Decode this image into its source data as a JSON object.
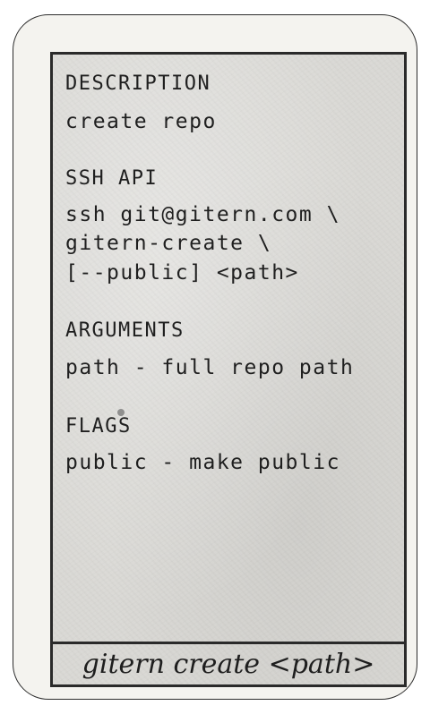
{
  "card": {
    "sections": {
      "description": {
        "heading": "DESCRIPTION",
        "text": "create repo"
      },
      "ssh_api": {
        "heading": "SSH API",
        "lines": [
          "ssh git@gitern.com \\",
          "gitern-create \\",
          "[--public] <path>"
        ]
      },
      "arguments": {
        "heading": "ARGUMENTS",
        "text": "path - full repo path"
      },
      "flags": {
        "heading": "FLAGS",
        "text": "public - make public"
      }
    },
    "footer_title": "gitern create <path>"
  }
}
